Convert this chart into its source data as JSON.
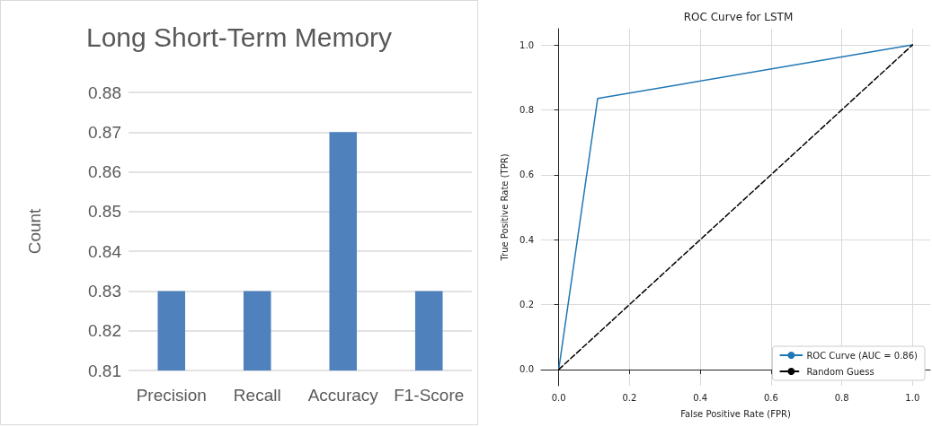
{
  "chart_data": [
    {
      "type": "bar",
      "title": "Long Short-Term Memory",
      "ylabel": "Count",
      "categories": [
        "Precision",
        "Recall",
        "Accuracy",
        "F1-Score"
      ],
      "values": [
        0.83,
        0.83,
        0.87,
        0.83
      ],
      "color": "#4f81bd",
      "ylim": [
        0.81,
        0.88
      ],
      "yticks": [
        0.81,
        0.82,
        0.83,
        0.84,
        0.85,
        0.86,
        0.87,
        0.88
      ],
      "grid": "y",
      "legend": false
    },
    {
      "type": "line",
      "title": "ROC Curve for LSTM",
      "xlabel": "False Positive Rate (FPR)",
      "ylabel": "True Positive Rate (TPR)",
      "series": [
        {
          "name": "ROC Curve (AUC = 0.86)",
          "color": "#1f77b4",
          "x": [
            0,
            0.11,
            1
          ],
          "values": [
            0,
            0.835,
            1
          ],
          "line_style": "solid"
        },
        {
          "name": "Random Guess",
          "color": "#000000",
          "x": [
            0,
            1
          ],
          "values": [
            0,
            1
          ],
          "line_style": "dashed"
        }
      ],
      "xlim": [
        -0.05,
        1.05
      ],
      "ylim": [
        -0.05,
        1.05
      ],
      "xticks": [
        {
          "value": 0,
          "label": "0.0"
        },
        {
          "value": 0.2,
          "label": "0.2"
        },
        {
          "value": 0.4,
          "label": "0.4"
        },
        {
          "value": 0.6,
          "label": "0.6"
        },
        {
          "value": 0.8,
          "label": "0.8"
        },
        {
          "value": 1,
          "label": "1.0"
        }
      ],
      "yticks": [
        {
          "value": 0,
          "label": "0.0"
        },
        {
          "value": 0.2,
          "label": "0.2"
        },
        {
          "value": 0.4,
          "label": "0.4"
        },
        {
          "value": 0.6,
          "label": "0.6"
        },
        {
          "value": 0.8,
          "label": "0.8"
        },
        {
          "value": 1,
          "label": "1.0"
        }
      ],
      "grid": true,
      "legend": "bottom right",
      "marker": "none"
    }
  ]
}
